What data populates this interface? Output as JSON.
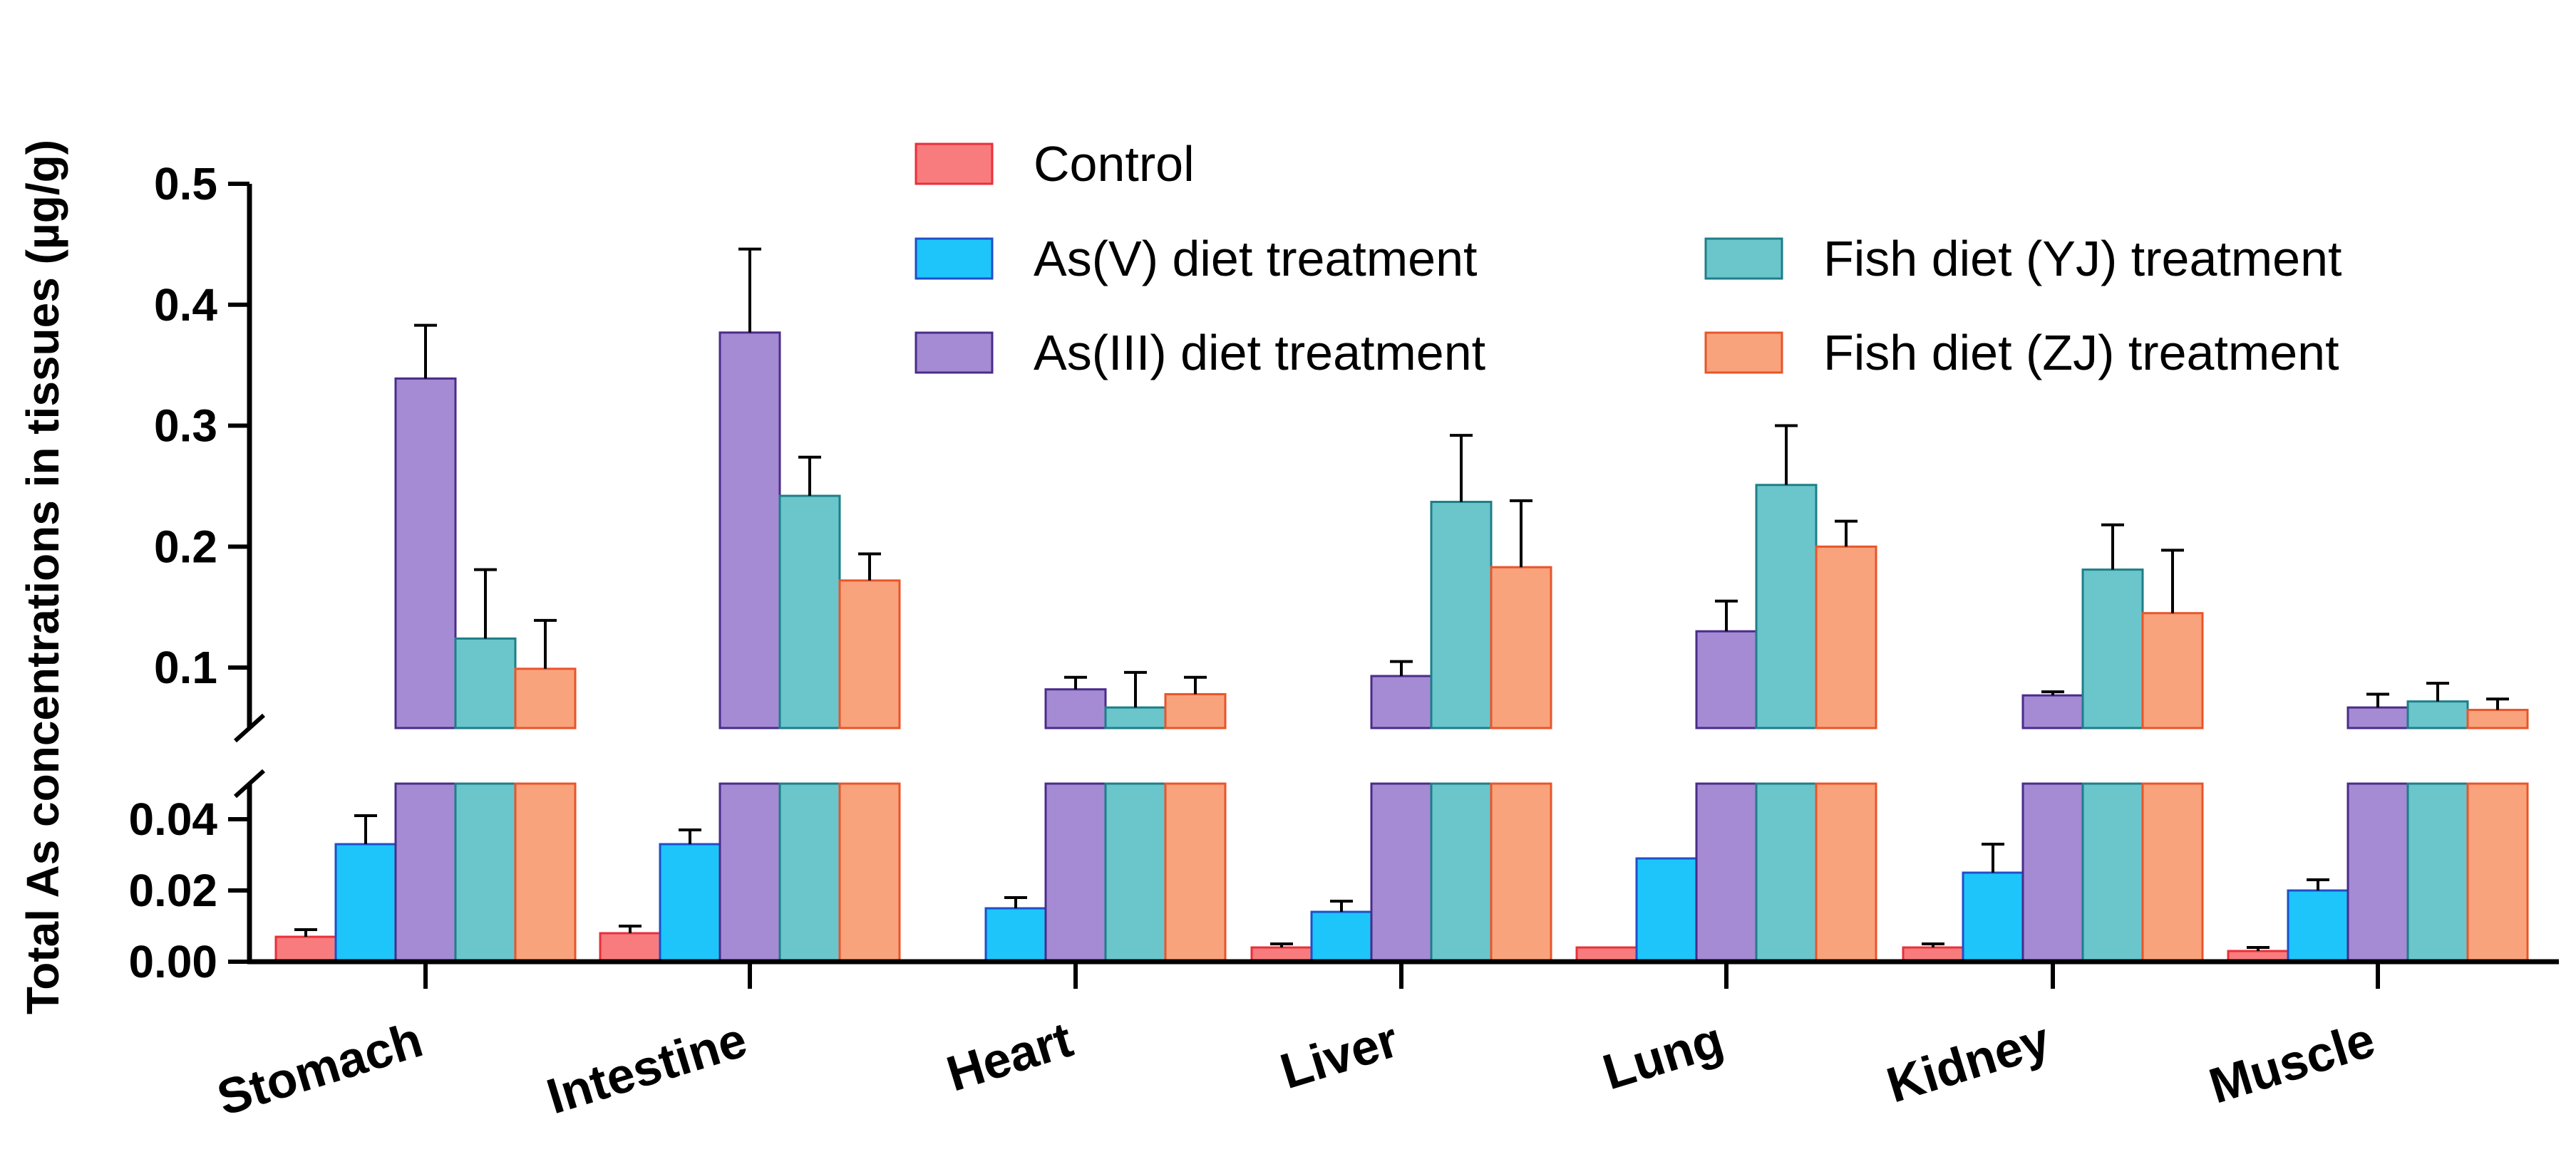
{
  "chart_data": {
    "type": "bar",
    "title": "",
    "xlabel": "",
    "ylabel": "Total As concentrations in tissues (µg/g)",
    "categories": [
      "Stomach",
      "Intestine",
      "Heart",
      "Liver",
      "Lung",
      "Kidney",
      "Muscle"
    ],
    "y_axis_broken": true,
    "lower_ylim": [
      0,
      0.05
    ],
    "upper_ylim": [
      0.05,
      0.5
    ],
    "lower_ticks": [
      "0.00",
      "0.02",
      "0.04"
    ],
    "upper_ticks": [
      "0.1",
      "0.2",
      "0.3",
      "0.4",
      "0.5"
    ],
    "legend_position": "top",
    "series": [
      {
        "name": "Control",
        "color": "#F87C7E",
        "edge": "#E8303A",
        "values": [
          0.007,
          0.008,
          null,
          0.004,
          0.004,
          0.004,
          0.003
        ],
        "errors": [
          0.002,
          0.002,
          null,
          0.001,
          0.0,
          0.001,
          0.001
        ]
      },
      {
        "name": "As(V) diet treatment",
        "color": "#1EC5FA",
        "edge": "#1F4FC8",
        "values": [
          0.033,
          0.033,
          0.015,
          0.014,
          0.029,
          0.025,
          0.02
        ],
        "errors": [
          0.008,
          0.004,
          0.003,
          0.003,
          0.0,
          0.008,
          0.003
        ]
      },
      {
        "name": "As(III) diet treatment",
        "color": "#A48BD4",
        "edge": "#4A2C8A",
        "values": [
          0.339,
          0.377,
          0.082,
          0.093,
          0.13,
          0.077,
          0.067
        ],
        "errors": [
          0.044,
          0.069,
          0.01,
          0.012,
          0.025,
          0.003,
          0.011
        ]
      },
      {
        "name": "Fish diet (YJ) treatment",
        "color": "#6BC6CC",
        "edge": "#1E7E88",
        "values": [
          0.124,
          0.242,
          0.067,
          0.237,
          0.251,
          0.181,
          0.072
        ],
        "errors": [
          0.057,
          0.032,
          0.029,
          0.055,
          0.049,
          0.037,
          0.015
        ]
      },
      {
        "name": "Fish diet (ZJ) treatment",
        "color": "#F9A37D",
        "edge": "#E8552A",
        "values": [
          0.099,
          0.172,
          0.078,
          0.183,
          0.2,
          0.145,
          0.065
        ],
        "errors": [
          0.04,
          0.022,
          0.014,
          0.055,
          0.021,
          0.052,
          0.009
        ]
      }
    ]
  }
}
